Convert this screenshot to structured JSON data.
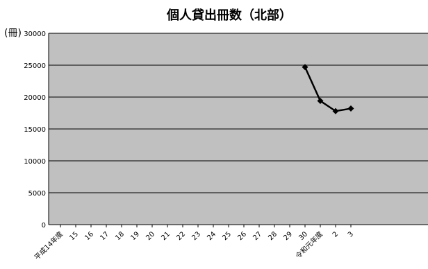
{
  "chart_data": {
    "type": "line",
    "title": "個人貸出冊数（北部）",
    "ylabel": "(冊)",
    "ylim": [
      0,
      30000
    ],
    "yticks": [
      0,
      5000,
      10000,
      15000,
      20000,
      25000,
      30000
    ],
    "grid": true,
    "plot_background": "#c0c0c0",
    "line_color": "#000000",
    "categories": [
      "平成14年度",
      "15",
      "16",
      "17",
      "18",
      "19",
      "20",
      "21",
      "22",
      "23",
      "24",
      "25",
      "26",
      "27",
      "28",
      "29",
      "30",
      "令和元年度",
      "2",
      "3"
    ],
    "series": [
      {
        "values": [
          null,
          null,
          null,
          null,
          null,
          null,
          null,
          null,
          null,
          null,
          null,
          null,
          null,
          null,
          null,
          null,
          24700,
          19400,
          17800,
          18200
        ]
      }
    ]
  }
}
